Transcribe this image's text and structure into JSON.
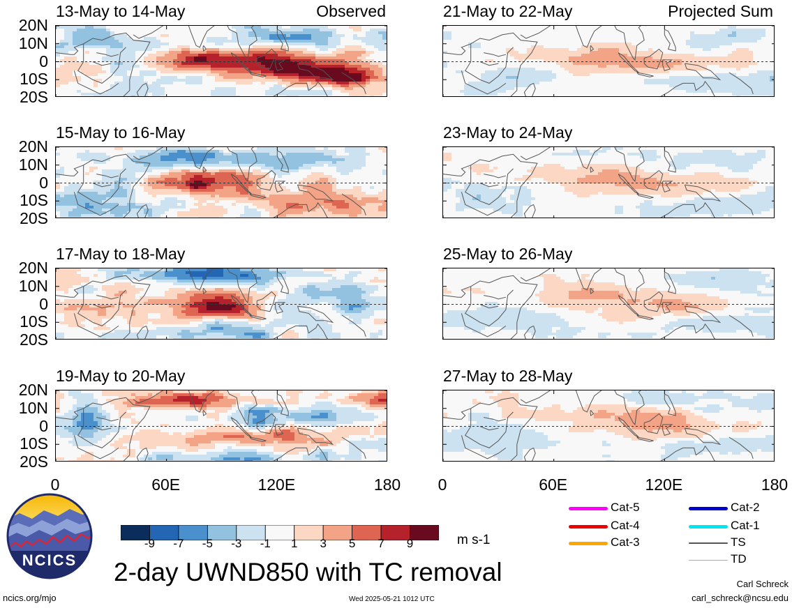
{
  "panels": [
    {
      "title": "13-May to 14-May",
      "corner": "Observed",
      "kind": "observed"
    },
    {
      "title": "15-May to 16-May",
      "corner": "",
      "kind": "observed"
    },
    {
      "title": "17-May to 18-May",
      "corner": "",
      "kind": "observed"
    },
    {
      "title": "19-May to 20-May",
      "corner": "",
      "kind": "observed"
    },
    {
      "title": "21-May to 22-May",
      "corner": "Projected Sum",
      "kind": "projected"
    },
    {
      "title": "23-May to 24-May",
      "corner": "",
      "kind": "projected"
    },
    {
      "title": "25-May to 26-May",
      "corner": "",
      "kind": "projected"
    },
    {
      "title": "27-May to 28-May",
      "corner": "",
      "kind": "projected"
    }
  ],
  "lat_labels": [
    "20N",
    "10N",
    "0",
    "10S",
    "20S"
  ],
  "lon_labels": [
    "0",
    "60E",
    "120E",
    "180"
  ],
  "colorbar": {
    "colors": [
      "#0a2d5c",
      "#2266b4",
      "#4a90cc",
      "#92c2e0",
      "#cde2f0",
      "#f8f8f8",
      "#fcd8c4",
      "#f3a486",
      "#dd6552",
      "#b5222c",
      "#6a0a1e"
    ],
    "labels": [
      "-9",
      "-7",
      "-5",
      "-3",
      "-1",
      "1",
      "3",
      "5",
      "7",
      "9"
    ],
    "units": "m s-1"
  },
  "legend": [
    {
      "label": "Cat-5",
      "color": "#ff00ff"
    },
    {
      "label": "Cat-4",
      "color": "#ee0000"
    },
    {
      "label": "Cat-3",
      "color": "#ffa500"
    },
    {
      "label": "Cat-2",
      "color": "#0000cc"
    },
    {
      "label": "Cat-1",
      "color": "#00e5ee"
    },
    {
      "label": "TS",
      "color": "#555555"
    },
    {
      "label": "TD",
      "color": "#aaaaaa"
    }
  ],
  "logo_text": "NCICS",
  "main_title": "2-day UWND850 with TC removal",
  "footer": {
    "left": "ncics.org/mjo",
    "center": "Wed 2025-05-21 1012 UTC",
    "author": "Carl Schreck",
    "email": "carl_schreck@ncsu.edu"
  }
}
